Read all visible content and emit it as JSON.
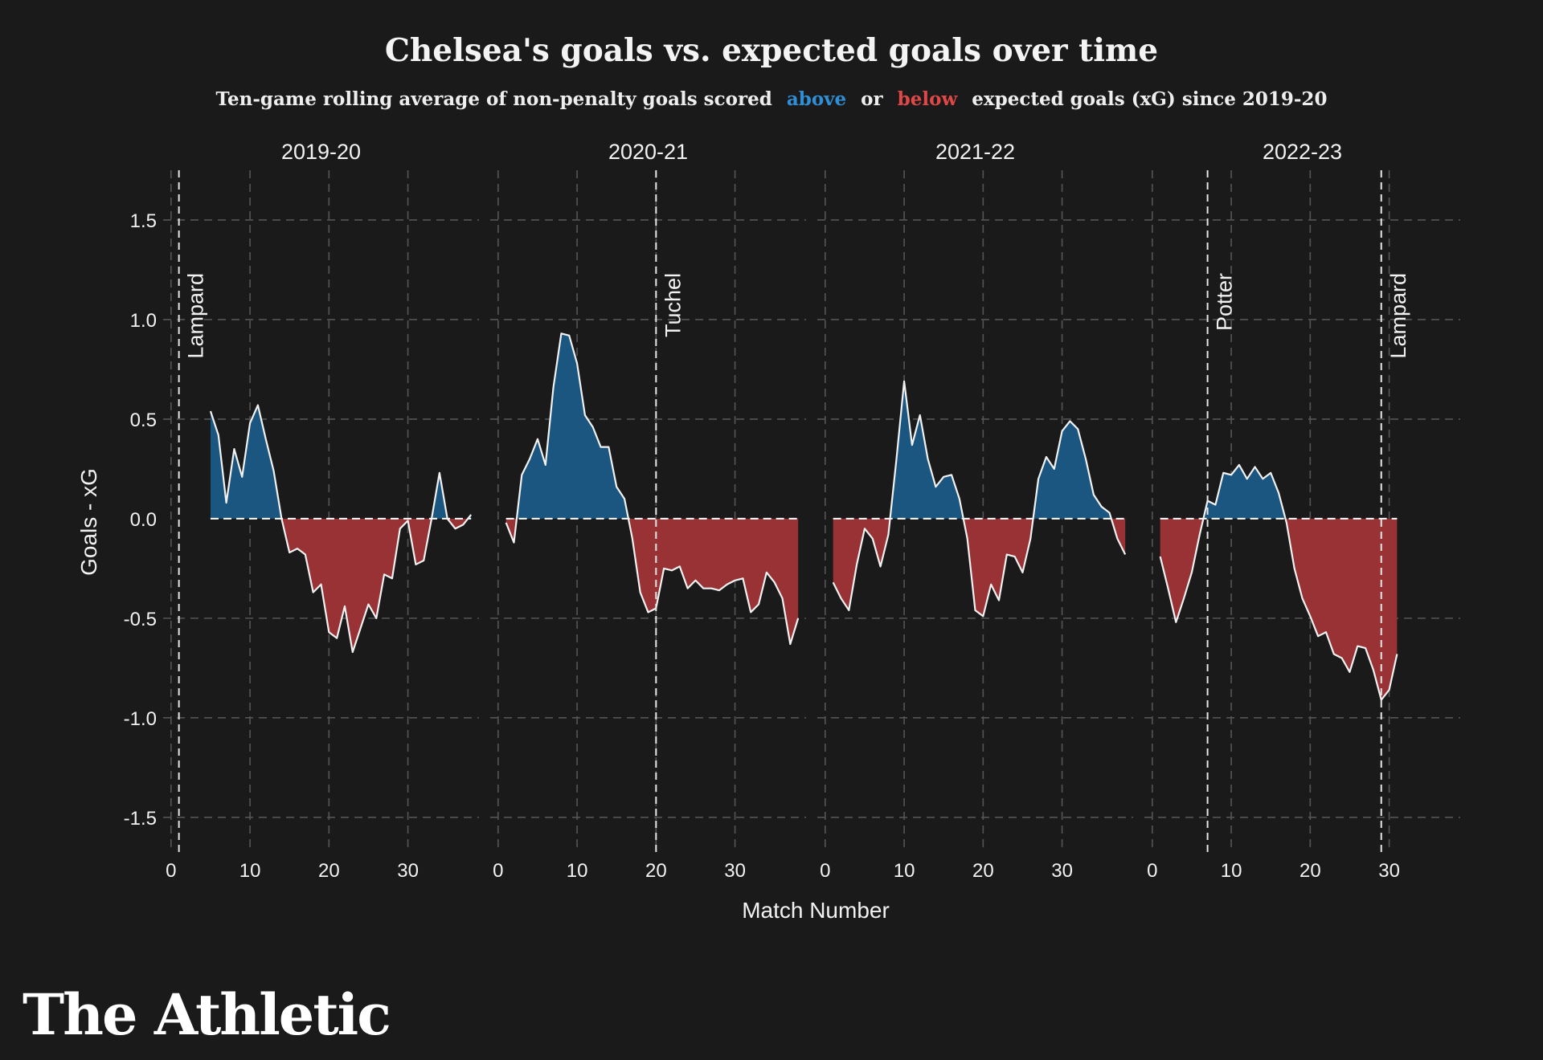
{
  "brand": "The Athletic",
  "subtitle": {
    "before": "Ten-game rolling average of non-penalty goals scored",
    "above": "above",
    "or": "or",
    "below": "below",
    "after": "expected goals (xG) since 2019-20"
  },
  "colors": {
    "background": "#1a1a1a",
    "above": "#1a5680",
    "below": "#983234",
    "above_label": "#2f8fd6",
    "below_label": "#e04848",
    "line": "#f2f2f2",
    "grid": "#555555"
  },
  "chart_data": {
    "type": "area",
    "title": "Chelsea's goals vs. expected goals over time",
    "xlabel": "Match Number",
    "ylabel": "Goals - xG",
    "ylim": [
      -1.65,
      1.75
    ],
    "yticks": [
      1.5,
      1.0,
      0.5,
      0.0,
      -0.5,
      -1.0,
      -1.5
    ],
    "xticks": [
      0,
      10,
      20,
      30
    ],
    "grid": true,
    "panels": [
      {
        "season": "2019-20",
        "xlim": [
          -1,
          39
        ],
        "managers": [
          {
            "name": "Lampard",
            "x": 1
          }
        ],
        "x": [
          5,
          6,
          7,
          8,
          9,
          10,
          11,
          12,
          13,
          14,
          15,
          16,
          17,
          18,
          19,
          20,
          21,
          22,
          23,
          24,
          25,
          26,
          27,
          28,
          29,
          30,
          31,
          32,
          33,
          34,
          35,
          36,
          37,
          38
        ],
        "values": [
          0.54,
          0.42,
          0.08,
          0.35,
          0.21,
          0.48,
          0.57,
          0.4,
          0.24,
          0.0,
          -0.17,
          -0.15,
          -0.18,
          -0.37,
          -0.33,
          -0.57,
          -0.6,
          -0.44,
          -0.67,
          -0.55,
          -0.43,
          -0.5,
          -0.28,
          -0.3,
          -0.05,
          -0.01,
          -0.23,
          -0.21,
          0.0,
          0.23,
          0.0,
          -0.05,
          -0.03,
          0.02
        ]
      },
      {
        "season": "2020-21",
        "xlim": [
          -1,
          39
        ],
        "managers": [
          {
            "name": "Tuchel",
            "x": 20
          }
        ],
        "x": [
          1,
          2,
          3,
          4,
          5,
          6,
          7,
          8,
          9,
          10,
          11,
          12,
          13,
          14,
          15,
          16,
          17,
          18,
          19,
          20,
          21,
          22,
          23,
          24,
          25,
          26,
          27,
          28,
          29,
          30,
          31,
          32,
          33,
          34,
          35,
          36,
          37,
          38
        ],
        "values": [
          -0.02,
          -0.12,
          0.22,
          0.3,
          0.4,
          0.27,
          0.66,
          0.93,
          0.92,
          0.78,
          0.52,
          0.46,
          0.36,
          0.36,
          0.16,
          0.1,
          -0.1,
          -0.37,
          -0.47,
          -0.45,
          -0.25,
          -0.26,
          -0.24,
          -0.35,
          -0.31,
          -0.35,
          -0.35,
          -0.36,
          -0.33,
          -0.31,
          -0.3,
          -0.47,
          -0.43,
          -0.27,
          -0.32,
          -0.4,
          -0.63,
          -0.5
        ]
      },
      {
        "season": "2021-22",
        "xlim": [
          -1,
          39
        ],
        "managers": [],
        "x": [
          1,
          2,
          3,
          4,
          5,
          6,
          7,
          8,
          9,
          10,
          11,
          12,
          13,
          14,
          15,
          16,
          17,
          18,
          19,
          20,
          21,
          22,
          23,
          24,
          25,
          26,
          27,
          28,
          29,
          30,
          31,
          32,
          33,
          34,
          35,
          36,
          37,
          38
        ],
        "values": [
          -0.32,
          -0.4,
          -0.46,
          -0.23,
          -0.05,
          -0.1,
          -0.24,
          -0.08,
          0.29,
          0.69,
          0.37,
          0.52,
          0.3,
          0.16,
          0.21,
          0.22,
          0.1,
          -0.1,
          -0.46,
          -0.49,
          -0.33,
          -0.41,
          -0.18,
          -0.19,
          -0.27,
          -0.1,
          0.2,
          0.31,
          0.25,
          0.44,
          0.49,
          0.45,
          0.3,
          0.12,
          0.06,
          0.03,
          -0.1,
          -0.18
        ]
      },
      {
        "season": "2022-23",
        "xlim": [
          -1,
          39
        ],
        "managers": [
          {
            "name": "Potter",
            "x": 7
          },
          {
            "name": "Lampard",
            "x": 29
          }
        ],
        "x": [
          1,
          2,
          3,
          4,
          5,
          6,
          7,
          8,
          9,
          10,
          11,
          12,
          13,
          14,
          15,
          16,
          17,
          18,
          19,
          20,
          21,
          22,
          23,
          24,
          25,
          26,
          27,
          28,
          29,
          30,
          31
        ],
        "values": [
          -0.19,
          -0.35,
          -0.52,
          -0.4,
          -0.27,
          -0.08,
          0.09,
          0.07,
          0.23,
          0.22,
          0.27,
          0.2,
          0.26,
          0.2,
          0.23,
          0.13,
          -0.02,
          -0.25,
          -0.4,
          -0.49,
          -0.59,
          -0.57,
          -0.68,
          -0.7,
          -0.77,
          -0.64,
          -0.65,
          -0.76,
          -0.91,
          -0.86,
          -0.68
        ]
      }
    ]
  }
}
